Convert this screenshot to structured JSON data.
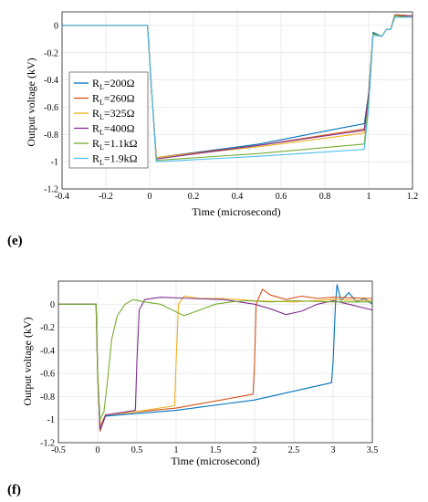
{
  "panels": [
    {
      "label": "(e)",
      "chart_data": {
        "type": "line",
        "xlabel": "Time (microsecond)",
        "ylabel": "Output voltage (kV)",
        "xlim": [
          -0.4,
          1.2
        ],
        "ylim": [
          -1.2,
          0.1
        ],
        "xticks": [
          "-0.4",
          "-0.2",
          "0",
          "0.2",
          "0.4",
          "0.6",
          "0.8",
          "1",
          "1.2"
        ],
        "yticks": [
          "0",
          "-0.2",
          "-0.4",
          "-0.6",
          "-0.8",
          "-1",
          "-1.2"
        ],
        "grid": true,
        "legend_position": "left",
        "series": [
          {
            "name": "R_L=200Ω",
            "color": "#0072bd",
            "x": [
              -0.4,
              -0.01,
              0.01,
              0.03,
              0.5,
              0.98,
              1.0,
              1.02,
              1.06,
              1.08,
              1.1,
              1.12,
              1.2
            ],
            "y": [
              0.0,
              0.0,
              -0.5,
              -0.97,
              -0.87,
              -0.72,
              -0.5,
              -0.05,
              -0.08,
              -0.03,
              -0.03,
              0.08,
              0.07
            ]
          },
          {
            "name": "R_L=260Ω",
            "color": "#d95319",
            "x": [
              -0.4,
              -0.01,
              0.01,
              0.03,
              0.5,
              0.98,
              1.0,
              1.02,
              1.06,
              1.08,
              1.1,
              1.12,
              1.2
            ],
            "y": [
              0.0,
              0.0,
              -0.5,
              -0.97,
              -0.88,
              -0.76,
              -0.5,
              -0.06,
              -0.08,
              -0.03,
              -0.03,
              0.08,
              0.07
            ]
          },
          {
            "name": "R_L=325Ω",
            "color": "#edb120",
            "x": [
              -0.4,
              -0.01,
              0.01,
              0.03,
              0.5,
              0.98,
              1.0,
              1.02,
              1.06,
              1.08,
              1.1,
              1.12,
              1.2
            ],
            "y": [
              0.0,
              0.0,
              -0.5,
              -0.97,
              -0.89,
              -0.79,
              -0.5,
              -0.06,
              -0.08,
              -0.03,
              -0.03,
              0.07,
              0.07
            ]
          },
          {
            "name": "R_L=400Ω",
            "color": "#7e2f8e",
            "x": [
              -0.4,
              -0.01,
              0.01,
              0.03,
              0.5,
              0.98,
              1.0,
              1.02,
              1.06,
              1.08,
              1.1,
              1.12,
              1.2
            ],
            "y": [
              0.0,
              0.0,
              -0.5,
              -0.98,
              -0.88,
              -0.77,
              -0.5,
              -0.06,
              -0.08,
              -0.03,
              -0.03,
              0.07,
              0.07
            ]
          },
          {
            "name": "R_L=1.1kΩ",
            "color": "#77ac30",
            "x": [
              -0.4,
              -0.01,
              0.01,
              0.03,
              0.5,
              0.98,
              1.0,
              1.02,
              1.06,
              1.08,
              1.1,
              1.12,
              1.2
            ],
            "y": [
              0.0,
              0.0,
              -0.5,
              -0.99,
              -0.94,
              -0.87,
              -0.55,
              -0.06,
              -0.08,
              -0.03,
              -0.03,
              0.07,
              0.06
            ]
          },
          {
            "name": "R_L=1.9kΩ",
            "color": "#4dbeee",
            "x": [
              -0.4,
              -0.01,
              0.01,
              0.03,
              0.5,
              0.98,
              1.0,
              1.02,
              1.06,
              1.08,
              1.1,
              1.12,
              1.2
            ],
            "y": [
              0.0,
              0.0,
              -0.5,
              -1.0,
              -0.96,
              -0.91,
              -0.6,
              -0.07,
              -0.08,
              -0.03,
              -0.03,
              0.06,
              0.06
            ]
          }
        ]
      }
    },
    {
      "label": "(f)",
      "chart_data": {
        "type": "line",
        "xlabel": "Time (microsecond)",
        "ylabel": "Output voltage (kV)",
        "xlim": [
          -0.5,
          3.5
        ],
        "ylim": [
          -1.2,
          0.2
        ],
        "xticks": [
          "-0.5",
          "0",
          "0.5",
          "1",
          "1.5",
          "2",
          "2.5",
          "3",
          "3.5"
        ],
        "yticks": [
          "0",
          "-0.2",
          "-0.4",
          "-0.6",
          "-0.8",
          "-1",
          "-1.2"
        ],
        "grid": true,
        "series": [
          {
            "color": "#0072bd",
            "x": [
              -0.5,
              -0.02,
              0.0,
              0.03,
              0.1,
              1.0,
              2.0,
              2.98,
              3.0,
              3.03,
              3.05,
              3.1,
              3.2,
              3.3,
              3.4,
              3.5
            ],
            "y": [
              0.0,
              0.0,
              -0.6,
              -1.1,
              -0.97,
              -0.92,
              -0.83,
              -0.68,
              -0.5,
              0.0,
              0.17,
              0.03,
              0.1,
              0.02,
              0.05,
              0.0
            ]
          },
          {
            "color": "#d95319",
            "x": [
              -0.5,
              -0.02,
              0.0,
              0.03,
              0.1,
              1.0,
              1.98,
              2.0,
              2.02,
              2.05,
              2.1,
              2.2,
              2.4,
              2.6,
              2.8,
              3.0,
              3.5
            ],
            "y": [
              0.0,
              0.0,
              -0.6,
              -1.1,
              -0.96,
              -0.9,
              -0.78,
              -0.5,
              0.0,
              0.05,
              0.13,
              0.08,
              0.04,
              0.07,
              0.05,
              0.06,
              0.05
            ]
          },
          {
            "color": "#edb120",
            "x": [
              -0.5,
              -0.02,
              0.0,
              0.03,
              0.1,
              0.5,
              0.98,
              1.0,
              1.03,
              1.1,
              1.3,
              1.6,
              2.0,
              2.5,
              3.0,
              3.5
            ],
            "y": [
              0.0,
              0.0,
              -0.6,
              -1.05,
              -0.96,
              -0.93,
              -0.88,
              -0.5,
              0.0,
              0.07,
              0.05,
              0.05,
              0.03,
              0.02,
              0.04,
              0.03
            ]
          },
          {
            "color": "#7e2f8e",
            "x": [
              -0.5,
              -0.02,
              0.0,
              0.03,
              0.1,
              0.3,
              0.48,
              0.5,
              0.53,
              0.6,
              0.8,
              1.2,
              1.6,
              2.0,
              2.2,
              2.4,
              2.6,
              2.8,
              3.0,
              3.2,
              3.5
            ],
            "y": [
              0.0,
              0.0,
              -0.6,
              -1.08,
              -0.96,
              -0.94,
              -0.92,
              -0.5,
              -0.05,
              0.04,
              0.06,
              0.05,
              0.04,
              0.0,
              -0.04,
              -0.09,
              -0.06,
              0.0,
              0.03,
              0.0,
              -0.05
            ]
          },
          {
            "color": "#77ac30",
            "x": [
              -0.5,
              -0.02,
              0.0,
              0.03,
              0.08,
              0.12,
              0.18,
              0.25,
              0.35,
              0.45,
              0.6,
              0.8,
              0.95,
              1.1,
              1.3,
              1.5,
              1.7,
              1.9,
              2.2,
              2.5,
              3.0,
              3.5
            ],
            "y": [
              0.0,
              0.0,
              -0.6,
              -1.0,
              -0.93,
              -0.7,
              -0.3,
              -0.1,
              0.0,
              0.04,
              0.02,
              0.0,
              -0.05,
              -0.1,
              -0.05,
              0.0,
              0.02,
              0.03,
              0.02,
              0.03,
              0.02,
              0.02
            ]
          }
        ]
      }
    }
  ]
}
